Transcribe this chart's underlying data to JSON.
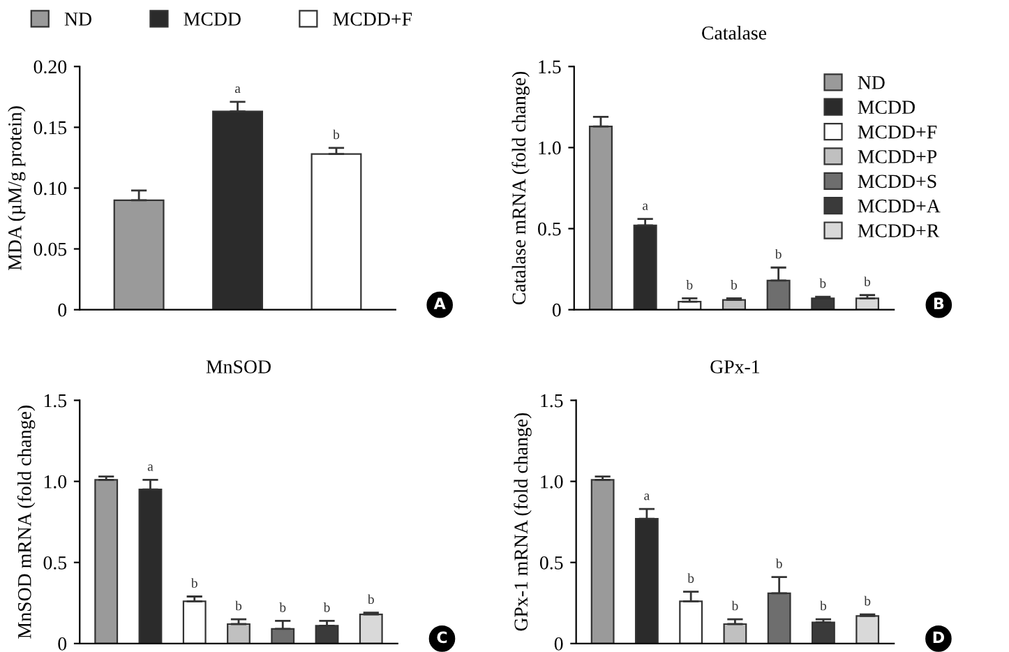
{
  "chart_data": [
    {
      "type": "bar",
      "ylabel": "MDA (µM/g protein)",
      "categories": [
        null,
        null,
        null
      ],
      "ylim": [
        0,
        0.2
      ],
      "yticks": [
        0,
        0.05,
        {
          "value": 0.1,
          "label": "0.10"
        },
        0.15,
        {
          "value": 0.2,
          "label": "0.20"
        }
      ],
      "legend": "top",
      "grid": false,
      "annotations": [
        "A"
      ],
      "series": [
        {
          "name": "ND",
          "color": "#9a9a9a",
          "values": [
            0.09,
            null,
            null
          ],
          "errors": [
            [
              0.09,
              0.098
            ],
            null,
            null
          ]
        },
        {
          "name": "MCDD",
          "color": "#2b2b2b",
          "values": [
            null,
            0.163,
            null
          ],
          "errors": [
            null,
            [
              0.163,
              0.171
            ],
            null
          ],
          "value_labels": [
            null,
            "a",
            null
          ]
        },
        {
          "name": "MCDD+F",
          "color": "#ffffff",
          "values": [
            null,
            null,
            0.128
          ],
          "errors": [
            null,
            null,
            [
              0.128,
              0.133
            ]
          ],
          "value_labels": [
            null,
            null,
            "b"
          ]
        }
      ]
    },
    {
      "type": "bar",
      "title": "Catalase",
      "ylabel": "Catalase mRNA (fold change)",
      "categories": [
        null,
        null,
        null,
        null,
        null,
        null,
        null
      ],
      "ylim": [
        0,
        1.5
      ],
      "yticks": [
        0,
        0.5,
        {
          "value": 1.0,
          "label": "1.0"
        },
        1.5
      ],
      "legend": "top right",
      "grid": false,
      "annotations": [
        "B"
      ],
      "series": [
        {
          "name": "ND",
          "color": "#9a9a9a",
          "values": [
            1.13,
            null,
            null,
            null,
            null,
            null,
            null
          ],
          "errors": [
            [
              1.13,
              1.19
            ],
            null,
            null,
            null,
            null,
            null,
            null
          ]
        },
        {
          "name": "MCDD",
          "color": "#2b2b2b",
          "values": [
            null,
            0.52,
            null,
            null,
            null,
            null,
            null
          ],
          "errors": [
            null,
            [
              0.52,
              0.56
            ],
            null,
            null,
            null,
            null,
            null
          ],
          "value_labels": [
            null,
            "a",
            null,
            null,
            null,
            null,
            null
          ]
        },
        {
          "name": "MCDD+F",
          "color": "#ffffff",
          "values": [
            null,
            null,
            0.05,
            null,
            null,
            null,
            null
          ],
          "errors": [
            null,
            null,
            [
              0.05,
              0.07
            ],
            null,
            null,
            null,
            null
          ],
          "value_labels": [
            null,
            null,
            "b",
            null,
            null,
            null,
            null
          ]
        },
        {
          "name": "MCDD+P",
          "color": "#c0c0c0",
          "values": [
            null,
            null,
            null,
            0.06,
            null,
            null,
            null
          ],
          "errors": [
            null,
            null,
            null,
            [
              0.06,
              0.07
            ],
            null,
            null,
            null
          ],
          "value_labels": [
            null,
            null,
            null,
            "b",
            null,
            null,
            null
          ]
        },
        {
          "name": "MCDD+S",
          "color": "#6e6e6e",
          "values": [
            null,
            null,
            null,
            null,
            0.18,
            null,
            null
          ],
          "errors": [
            null,
            null,
            null,
            null,
            [
              0.18,
              0.26
            ],
            null,
            null
          ],
          "value_labels": [
            null,
            null,
            null,
            null,
            "b",
            null,
            null
          ]
        },
        {
          "name": "MCDD+A",
          "color": "#3a3a3a",
          "values": [
            null,
            null,
            null,
            null,
            null,
            0.07,
            null
          ],
          "errors": [
            null,
            null,
            null,
            null,
            null,
            [
              0.07,
              0.08
            ],
            null
          ],
          "value_labels": [
            null,
            null,
            null,
            null,
            null,
            "b",
            null
          ]
        },
        {
          "name": "MCDD+R",
          "color": "#d9d9d9",
          "values": [
            null,
            null,
            null,
            null,
            null,
            null,
            0.07
          ],
          "errors": [
            null,
            null,
            null,
            null,
            null,
            null,
            [
              0.07,
              0.09
            ]
          ],
          "value_labels": [
            null,
            null,
            null,
            null,
            null,
            null,
            "b"
          ]
        }
      ]
    },
    {
      "type": "bar",
      "title": "MnSOD",
      "ylabel": "MnSOD mRNA (fold change)",
      "categories": [
        null,
        null,
        null,
        null,
        null,
        null,
        null
      ],
      "ylim": [
        0,
        1.5
      ],
      "yticks": [
        0,
        0.5,
        {
          "value": 1.0,
          "label": "1.0"
        },
        1.5
      ],
      "grid": false,
      "annotations": [
        "C"
      ],
      "values": [
        1.01,
        0.95,
        0.26,
        0.12,
        0.09,
        0.11,
        0.18
      ],
      "colors": [
        "#9a9a9a",
        "#2b2b2b",
        "#ffffff",
        "#c0c0c0",
        "#6e6e6e",
        "#3a3a3a",
        "#d9d9d9"
      ],
      "errors": [
        [
          1.01,
          1.03
        ],
        [
          0.95,
          1.01
        ],
        [
          0.26,
          0.29
        ],
        [
          0.12,
          0.15
        ],
        [
          0.09,
          0.14
        ],
        [
          0.11,
          0.14
        ],
        [
          0.18,
          0.19
        ]
      ],
      "value_labels": [
        null,
        "a",
        "b",
        "b",
        "b",
        "b",
        "b"
      ]
    },
    {
      "type": "bar",
      "title": "GPx-1",
      "ylabel": "GPx-1 mRNA (fold change)",
      "categories": [
        null,
        null,
        null,
        null,
        null,
        null,
        null
      ],
      "ylim": [
        0,
        1.5
      ],
      "yticks": [
        0,
        0.5,
        {
          "value": 1.0,
          "label": "1.0"
        },
        1.5
      ],
      "grid": false,
      "annotations": [
        "D"
      ],
      "values": [
        1.01,
        0.77,
        0.26,
        0.12,
        0.31,
        0.13,
        0.17
      ],
      "colors": [
        "#9a9a9a",
        "#2b2b2b",
        "#ffffff",
        "#c0c0c0",
        "#6e6e6e",
        "#3a3a3a",
        "#d9d9d9"
      ],
      "errors": [
        [
          1.01,
          1.03
        ],
        [
          0.77,
          0.83
        ],
        [
          0.26,
          0.32
        ],
        [
          0.12,
          0.15
        ],
        [
          0.31,
          0.41
        ],
        [
          0.13,
          0.15
        ],
        [
          0.17,
          0.18
        ]
      ],
      "value_labels": [
        null,
        "a",
        "b",
        "b",
        "b",
        "b",
        "b"
      ]
    }
  ]
}
